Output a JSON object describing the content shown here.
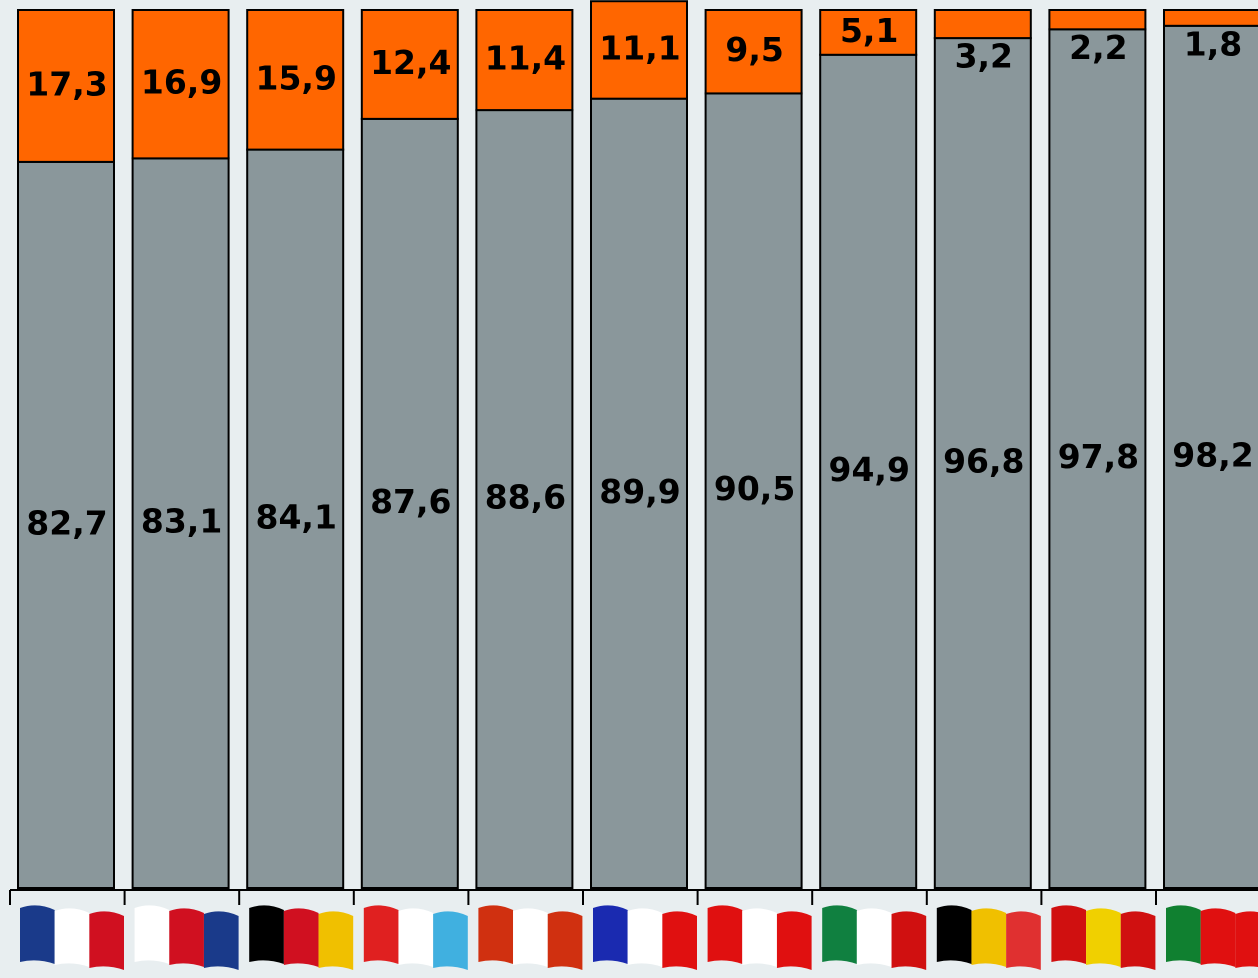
{
  "chart_data": {
    "type": "stacked-bar",
    "categories": [
      null,
      null,
      null,
      null,
      null,
      null,
      null,
      null,
      null,
      null,
      null
    ],
    "series": [
      {
        "color": "#8a979b",
        "values": [
          82.7,
          83.1,
          84.1,
          87.6,
          88.6,
          89.9,
          90.5,
          94.9,
          96.8,
          97.8,
          98.2
        ],
        "value_labels": [
          "82,7",
          "83,1",
          "84,1",
          "87,6",
          "88,6",
          "89,9",
          "90,5",
          "94,9",
          "96,8",
          "97,8",
          "98,2"
        ]
      },
      {
        "color": "#ff6600",
        "values": [
          17.3,
          16.9,
          15.9,
          12.4,
          11.4,
          11.1,
          9.5,
          5.1,
          3.2,
          2.2,
          1.8
        ],
        "value_labels": [
          "17,3",
          "16,9",
          "15,9",
          "12,4",
          "11,4",
          "11,1",
          "9,5",
          "5,1",
          "3,2",
          "2,2",
          "1,8"
        ]
      }
    ],
    "ylim": [
      0,
      100
    ]
  }
}
